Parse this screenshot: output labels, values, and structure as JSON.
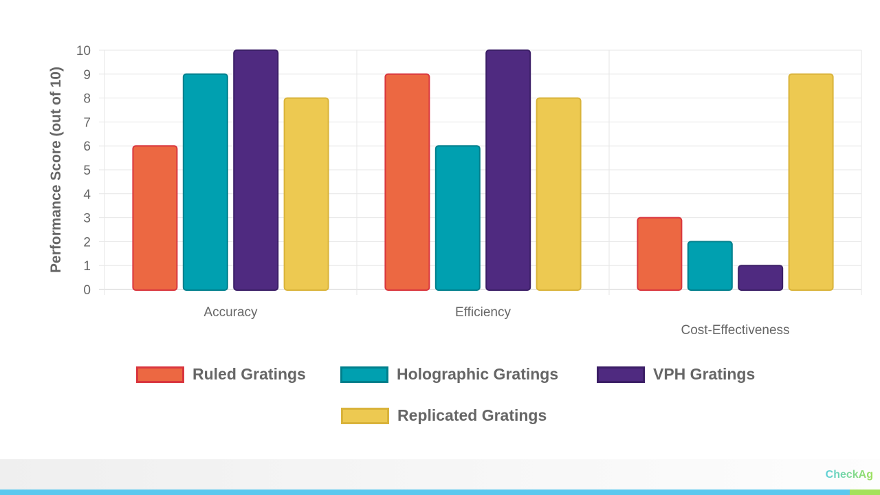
{
  "chart_data": {
    "type": "bar",
    "categories": [
      "Accuracy",
      "Efficiency",
      "Cost-Effectiveness"
    ],
    "series": [
      {
        "name": "Ruled Gratings",
        "values": [
          6,
          9,
          3
        ],
        "color": "#ec6842",
        "border": "#d9363e"
      },
      {
        "name": "Holographic Gratings",
        "values": [
          9,
          6,
          2
        ],
        "color": "#00a0b0",
        "border": "#007f8c"
      },
      {
        "name": "VPH Gratings",
        "values": [
          10,
          10,
          1
        ],
        "color": "#4f2a80",
        "border": "#3b1e66"
      },
      {
        "name": "Replicated Gratings",
        "values": [
          8,
          8,
          9
        ],
        "color": "#edc951",
        "border": "#d9b33a"
      }
    ],
    "ylabel": "Performance Score (out of 10)",
    "xlabel": "",
    "ylim": [
      0,
      10
    ],
    "yticks": [
      "0",
      "1",
      "2",
      "3",
      "4",
      "5",
      "6",
      "7",
      "8",
      "9",
      "10"
    ],
    "grid": true,
    "legend": "bottom"
  },
  "footer": {
    "brand": "CheckAg"
  }
}
